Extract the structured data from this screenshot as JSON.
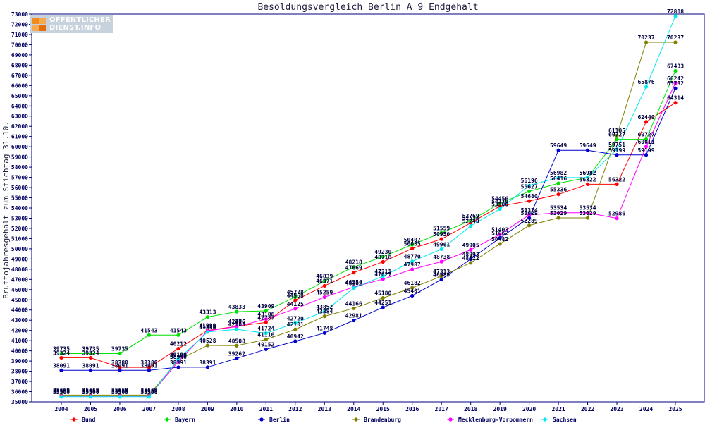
{
  "logo": {
    "line1": "ÖFFENTLICHER",
    "line2": "DIENST.INFO"
  },
  "chart_data": {
    "type": "line",
    "title": "Besoldungsvergleich Berlin A 9 Endgehalt",
    "ylabel": "Bruttojahresgehalt zum Stichtag 31.10.",
    "xlabel": "",
    "x": [
      "2004",
      "2005",
      "2006",
      "2007",
      "2008",
      "2009",
      "2010",
      "2011",
      "2012",
      "2013",
      "2014",
      "2015",
      "2016",
      "2017",
      "2018",
      "2019",
      "2020",
      "2021",
      "2022",
      "2023",
      "2024",
      "2025"
    ],
    "ylim": [
      35000,
      73000
    ],
    "ytick_step": 1000,
    "grid": false,
    "legend": "bottom",
    "series": [
      {
        "name": "Bund",
        "color": "#ff0000",
        "values": [
          39324,
          39324,
          38380,
          38380,
          40212,
          41999,
          42406,
          42787,
          44958,
          46371,
          47669,
          48718,
          50035,
          50950,
          52534,
          54179,
          54680,
          55336,
          56322,
          56322,
          62440,
          64314
        ]
      },
      {
        "name": "Bayern",
        "color": "#00e000",
        "values": [
          39735,
          39735,
          39735,
          41543,
          41543,
          43313,
          43833,
          43909,
          45278,
          46839,
          48218,
          49230,
          50407,
          51559,
          52769,
          54456,
          55627,
          56416,
          56982,
          60727,
          60727,
          67433
        ]
      },
      {
        "name": "Berlin",
        "color": "#0000d0",
        "values": [
          38091,
          38091,
          38091,
          38091,
          38391,
          38391,
          39262,
          40152,
          40942,
          41748,
          42981,
          44251,
          45401,
          46989,
          48993,
          51062,
          53029,
          59649,
          59649,
          59199,
          59199,
          65732
        ]
      },
      {
        "name": "Brandenburg",
        "color": "#808000",
        "values": [
          35669,
          35669,
          35669,
          35669,
          39100,
          40528,
          40508,
          41116,
          42101,
          43384,
          44166,
          45180,
          46182,
          47313,
          48622,
          50482,
          52289,
          53029,
          53029,
          61105,
          70237,
          70237
        ]
      },
      {
        "name": "Mecklenburg-Vorpommern",
        "color": "#ff00ff",
        "values": [
          35563,
          35563,
          35563,
          35563,
          38940,
          41956,
          42376,
          43106,
          44125,
          45259,
          46254,
          47027,
          47987,
          48738,
          49905,
          51403,
          53324,
          53534,
          53534,
          52986,
          60011,
          66242
        ]
      },
      {
        "name": "Sachsen",
        "color": "#00e8f0",
        "values": [
          35500,
          35500,
          35500,
          35500,
          39190,
          41850,
          42105,
          41724,
          42720,
          43852,
          46162,
          47311,
          48770,
          49961,
          52240,
          53900,
          56196,
          56982,
          56982,
          59751,
          65876,
          72808
        ]
      }
    ]
  }
}
